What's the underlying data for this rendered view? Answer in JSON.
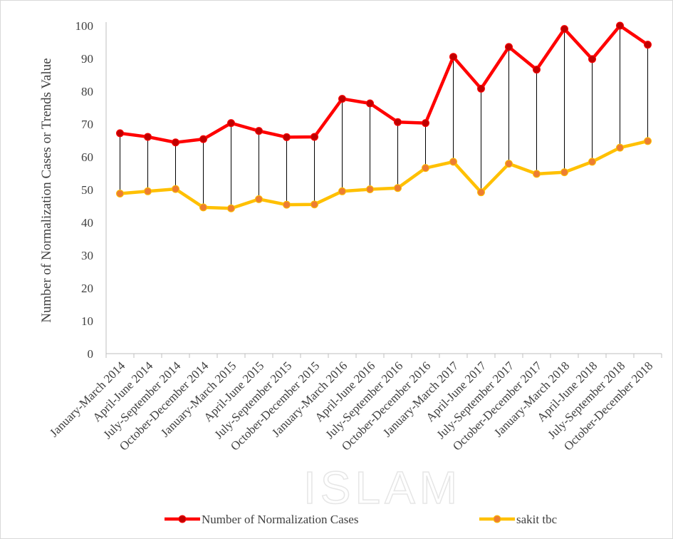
{
  "watermark": "ISLAM",
  "chart_data": {
    "type": "line",
    "title": "",
    "ylabel": "Number of Normalization Cases or Trends Value",
    "xlabel": "",
    "ylim": [
      0,
      100
    ],
    "yticks": [
      0,
      10,
      20,
      30,
      40,
      50,
      60,
      70,
      80,
      90,
      100
    ],
    "grid": false,
    "legend_position": "bottom",
    "categories": [
      "January-March 2014",
      "April-June 2014",
      "July-September 2014",
      "October-December 2014",
      "January-March 2015",
      "April-June 2015",
      "July-September 2015",
      "October-December 2015",
      "January-March 2016",
      "April-June 2016",
      "July-September 2016",
      "October-December 2016",
      "January-March 2017",
      "April-June 2017",
      "July-September 2017",
      "October-December 2017",
      "January-March 2018",
      "April-June 2018",
      "July-September 2018",
      "October-December 2018"
    ],
    "series": [
      {
        "name": "Number of Normalization Cases",
        "color": "#ff0000",
        "marker_color": "#c00000",
        "values": [
          67.2,
          66.1,
          64.4,
          65.4,
          70.3,
          67.9,
          66.0,
          66.1,
          77.7,
          76.3,
          70.6,
          70.3,
          90.5,
          80.8,
          93.5,
          86.6,
          99.0,
          89.8,
          100.0,
          94.2
        ]
      },
      {
        "name": "sakit tbc",
        "color": "#ffc000",
        "marker_color": "#ed7d31",
        "values": [
          48.8,
          49.5,
          50.2,
          44.6,
          44.3,
          47.1,
          45.4,
          45.5,
          49.5,
          50.1,
          50.5,
          56.6,
          58.5,
          49.2,
          57.9,
          54.8,
          55.3,
          58.5,
          62.8,
          64.8
        ]
      }
    ],
    "drop_lines": true
  }
}
